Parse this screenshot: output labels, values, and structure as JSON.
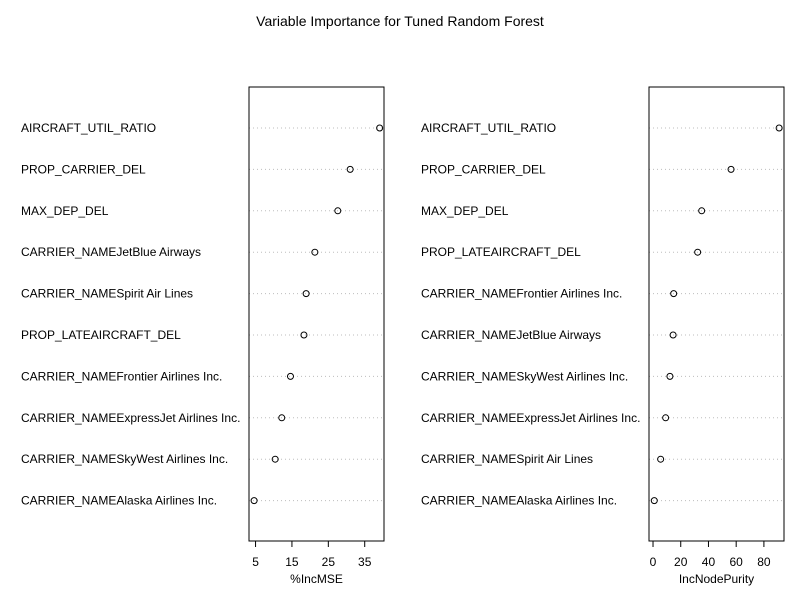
{
  "chart_data": {
    "title": "Variable Importance for Tuned Random Forest",
    "charts": [
      {
        "type": "dotchart",
        "xlabel": "%IncMSE",
        "xlim": [
          3.2,
          40.3
        ],
        "xticks": [
          5,
          15,
          25,
          35
        ],
        "grid": "dotted",
        "categories": [
          "AIRCRAFT_UTIL_RATIO",
          "PROP_CARRIER_DEL",
          "MAX_DEP_DEL",
          "CARRIER_NAMEJetBlue Airways",
          "CARRIER_NAMESpirit Air Lines",
          "PROP_LATEAIRCRAFT_DEL",
          "CARRIER_NAMEFrontier Airlines Inc.",
          "CARRIER_NAMEExpressJet Airlines Inc.",
          "CARRIER_NAMESkyWest Airlines Inc.",
          "CARRIER_NAMEAlaska Airlines Inc."
        ],
        "values": [
          39.1,
          31.0,
          27.6,
          21.3,
          18.9,
          18.3,
          14.6,
          12.2,
          10.4,
          4.6
        ]
      },
      {
        "type": "dotchart",
        "xlabel": "IncNodePurity",
        "xlim": [
          -2.9,
          94.5
        ],
        "xticks": [
          0,
          20,
          40,
          60,
          80
        ],
        "grid": "dotted",
        "categories": [
          "AIRCRAFT_UTIL_RATIO",
          "PROP_CARRIER_DEL",
          "MAX_DEP_DEL",
          "PROP_LATEAIRCRAFT_DEL",
          "CARRIER_NAMEFrontier Airlines Inc.",
          "CARRIER_NAMEJetBlue Airways",
          "CARRIER_NAMESkyWest Airlines Inc.",
          "CARRIER_NAMEExpressJet Airlines Inc.",
          "CARRIER_NAMESpirit Air Lines",
          "CARRIER_NAMEAlaska Airlines Inc."
        ],
        "values": [
          91.0,
          56.3,
          35.1,
          32.2,
          14.9,
          14.5,
          12.2,
          9.1,
          5.5,
          0.9
        ]
      }
    ]
  }
}
